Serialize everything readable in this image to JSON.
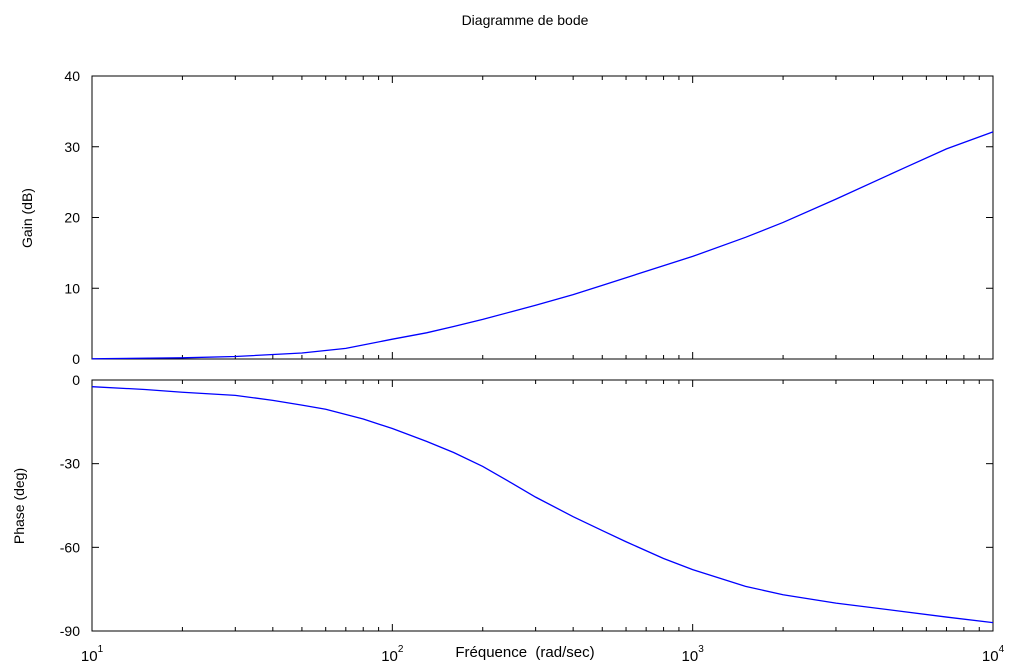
{
  "title": "Diagramme de bode",
  "colors": {
    "curve": "#0000ff",
    "axes": "#000000",
    "background": "#ffffff"
  },
  "chart_data": [
    {
      "type": "line",
      "panel": "top",
      "ylabel": "Gain (dB)",
      "xscale": "log",
      "xlim": [
        10,
        10000
      ],
      "ylim": [
        0,
        40
      ],
      "yticks": [
        0,
        10,
        20,
        30,
        40
      ],
      "ytick_labels": [
        "0",
        "10",
        "20",
        "30",
        "40"
      ],
      "grid": false,
      "series": [
        {
          "x": [
            10,
            20,
            30,
            50,
            70,
            100,
            130,
            160,
            200,
            250,
            300,
            400,
            500,
            700,
            1000,
            1500,
            2000,
            3000,
            5000,
            7000,
            10000
          ],
          "values": [
            0.04,
            0.17,
            0.35,
            0.85,
            1.5,
            2.8,
            3.7,
            4.6,
            5.6,
            6.7,
            7.6,
            9.1,
            10.4,
            12.4,
            14.5,
            17.2,
            19.3,
            22.6,
            26.9,
            29.7,
            32.1
          ]
        }
      ]
    },
    {
      "type": "line",
      "panel": "bottom",
      "ylabel": "Phase (deg)",
      "xlabel": "Fréquence  (rad/sec)",
      "xscale": "log",
      "xlim": [
        10,
        10000
      ],
      "ylim": [
        -90,
        0
      ],
      "yticks": [
        -90,
        -60,
        -30,
        0
      ],
      "ytick_labels": [
        "-90",
        "-60",
        "-30",
        "0"
      ],
      "xtick_labels": [
        {
          "base": "10",
          "exp": "1"
        },
        {
          "base": "10",
          "exp": "2"
        },
        {
          "base": "10",
          "exp": "3"
        },
        {
          "base": "10",
          "exp": "4"
        }
      ],
      "grid": false,
      "series": [
        {
          "x": [
            10,
            15,
            20,
            30,
            40,
            50,
            60,
            80,
            100,
            130,
            160,
            200,
            250,
            300,
            400,
            500,
            600,
            800,
            1000,
            1500,
            2000,
            3000,
            5000,
            7000,
            10000
          ],
          "values": [
            -2.4,
            -3.4,
            -4.4,
            -5.5,
            -7.3,
            -9.0,
            -10.5,
            -14.0,
            -17.4,
            -22.0,
            -26.0,
            -31.0,
            -37.0,
            -42.0,
            -49.0,
            -54.0,
            -58.0,
            -64.0,
            -68.0,
            -74.0,
            -77.0,
            -80.0,
            -83.0,
            -85.0,
            -87.0
          ]
        }
      ]
    }
  ]
}
